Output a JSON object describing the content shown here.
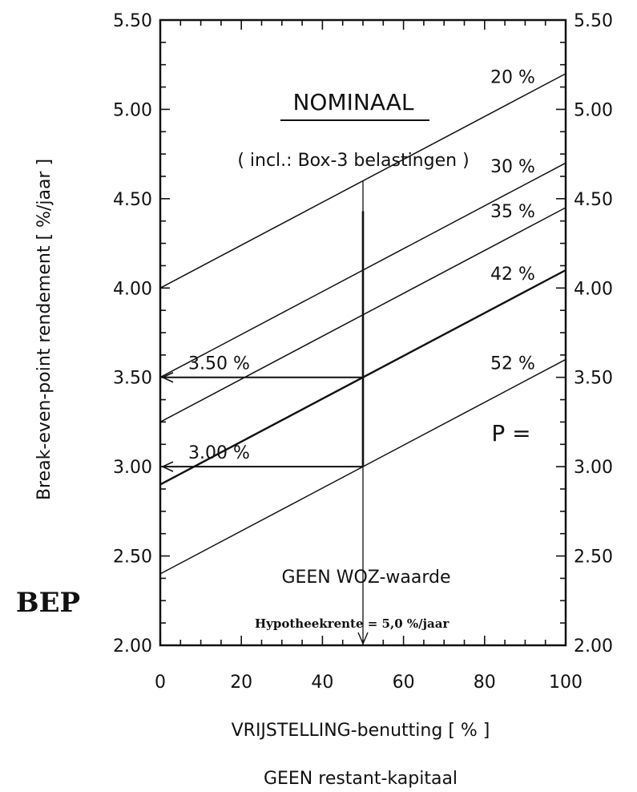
{
  "chart_data": {
    "type": "line",
    "title": "NOMINAAL",
    "subtitle": "( incl.: Box-3 belastingen )",
    "xlabel": "VRIJSTELLING-benutting [ % ]",
    "xlabel2": "GEEN restant-kapitaal",
    "ylabel": "Break-even-point rendement [ %/jaar ]",
    "ylabel_abbrev": "BEP",
    "xlim": [
      0,
      100
    ],
    "ylim": [
      2.0,
      5.5
    ],
    "x_ticks": [
      "0",
      "20",
      "40",
      "60",
      "80",
      "100"
    ],
    "y_ticks": [
      "2.00",
      "2.50",
      "3.00",
      "3.50",
      "4.00",
      "4.50",
      "5.00",
      "5.50"
    ],
    "p_label": "P =",
    "series": [
      {
        "name": "20 %",
        "x": [
          0,
          100
        ],
        "y": [
          4.0,
          5.2
        ]
      },
      {
        "name": "30 %",
        "x": [
          0,
          100
        ],
        "y": [
          3.5,
          4.7
        ]
      },
      {
        "name": "35 %",
        "x": [
          0,
          100
        ],
        "y": [
          3.25,
          4.45
        ]
      },
      {
        "name": "42 %",
        "x": [
          0,
          100
        ],
        "y": [
          2.9,
          4.1
        ]
      },
      {
        "name": "52 %",
        "x": [
          0,
          100
        ],
        "y": [
          2.4,
          3.6
        ]
      }
    ],
    "annotations": [
      {
        "text": "3.50 %",
        "x": 0,
        "y": 3.5
      },
      {
        "text": "3.00 %",
        "x": 0,
        "y": 3.0
      },
      {
        "text": "GEEN WOZ-waarde"
      },
      {
        "text": "Hypotheekrente = 5,0 %/jaar"
      }
    ],
    "reference_x": 50,
    "grid": false
  }
}
